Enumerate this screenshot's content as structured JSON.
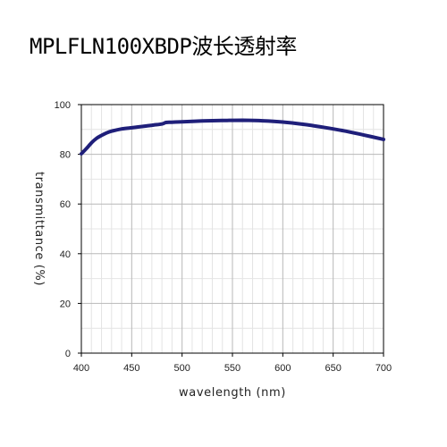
{
  "chart_data": {
    "type": "line",
    "title": "MPLFLN100XBDP波长透射率",
    "xlabel": "wavelength (nm)",
    "ylabel": "transmittance (%)",
    "xlim": [
      400,
      700
    ],
    "ylim": [
      0,
      100
    ],
    "xticks": [
      400,
      450,
      500,
      550,
      600,
      650,
      700
    ],
    "yticks": [
      0,
      20,
      40,
      60,
      80,
      100
    ],
    "grid": true,
    "line_color": "#1f1f7a",
    "series": [
      {
        "x": [
          400,
          405,
          410,
          415,
          420,
          425,
          430,
          440,
          450,
          460,
          470,
          480,
          484,
          490,
          500,
          520,
          540,
          560,
          580,
          600,
          620,
          640,
          660,
          680,
          700
        ],
        "y": [
          80.2,
          82.3,
          84.6,
          86.4,
          87.6,
          88.6,
          89.3,
          90.2,
          90.7,
          91.2,
          91.7,
          92.2,
          92.8,
          92.9,
          93.1,
          93.4,
          93.6,
          93.7,
          93.5,
          93.0,
          92.1,
          90.9,
          89.5,
          87.8,
          86.0
        ]
      }
    ]
  }
}
